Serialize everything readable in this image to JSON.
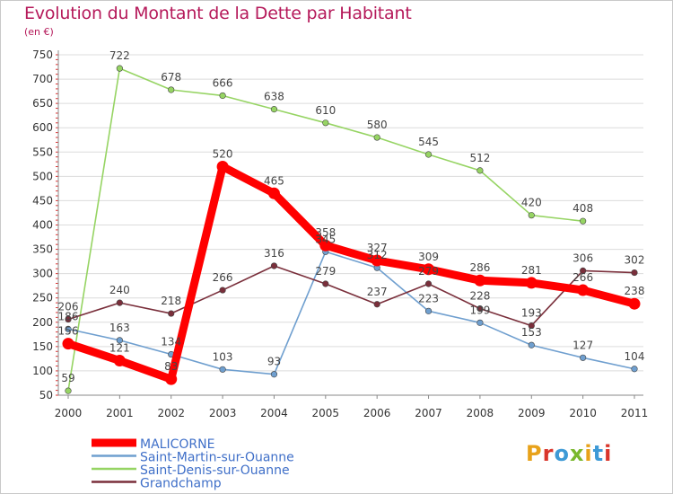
{
  "header": {
    "title": "Evolution du Montant de la Dette par Habitant",
    "unit": "(en €)"
  },
  "logo": {
    "text": "Proxiti",
    "colors": [
      "#e8a21a",
      "#d9352b",
      "#3e9ad6",
      "#7ab82d",
      "#e8a21a",
      "#3e9ad6",
      "#d9352b"
    ]
  },
  "chart_data": {
    "type": "line",
    "title": "Evolution du Montant de la Dette par Habitant",
    "ylabel": "(en €)",
    "xlabel": "",
    "x": [
      "2000",
      "2001",
      "2002",
      "2003",
      "2004",
      "2005",
      "2006",
      "2007",
      "2008",
      "2009",
      "2010",
      "2011"
    ],
    "ylim": [
      50,
      750
    ],
    "yticks": [
      50,
      100,
      150,
      200,
      250,
      300,
      350,
      400,
      450,
      500,
      550,
      600,
      650,
      700,
      750
    ],
    "grid": "horizontal",
    "legend": "bottom-left",
    "series": [
      {
        "name": "MALICORNE",
        "color": "#ff0000",
        "values": [
          156,
          121,
          83,
          520,
          465,
          358,
          327,
          309,
          286,
          281,
          266,
          238
        ]
      },
      {
        "name": "Saint-Martin-sur-Ouanne",
        "color": "#6f9fcf",
        "values": [
          186,
          163,
          134,
          103,
          93,
          345,
          312,
          223,
          199,
          153,
          127,
          104
        ]
      },
      {
        "name": "Saint-Denis-sur-Ouanne",
        "color": "#96d463",
        "values": [
          59,
          722,
          678,
          666,
          638,
          610,
          580,
          545,
          512,
          420,
          408,
          null
        ]
      },
      {
        "name": "Grandchamp",
        "color": "#7a2f3b",
        "values": [
          206,
          240,
          218,
          266,
          316,
          279,
          237,
          279,
          228,
          193,
          306,
          302
        ]
      }
    ]
  }
}
